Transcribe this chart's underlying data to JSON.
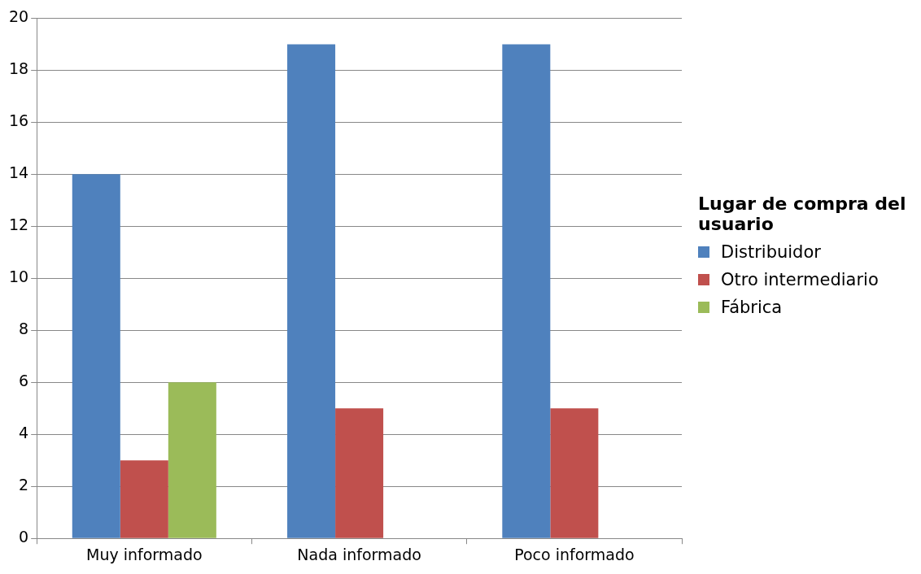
{
  "chart_data": {
    "type": "bar",
    "legend_title": "Lugar de compra del usuario",
    "categories": [
      "Muy informado",
      "Nada informado",
      "Poco informado"
    ],
    "series": [
      {
        "name": "Distribuidor",
        "color": "#4f81bd",
        "values": [
          14,
          19,
          19
        ]
      },
      {
        "name": "Otro intermediario",
        "color": "#c0504d",
        "values": [
          3,
          5,
          5
        ]
      },
      {
        "name": "Fábrica",
        "color": "#9bbb59",
        "values": [
          6,
          null,
          null
        ]
      }
    ],
    "ylim": [
      0,
      20
    ],
    "yticks": [
      0,
      2,
      4,
      6,
      8,
      10,
      12,
      14,
      16,
      18,
      20
    ],
    "grid": "y",
    "legend": "right"
  }
}
